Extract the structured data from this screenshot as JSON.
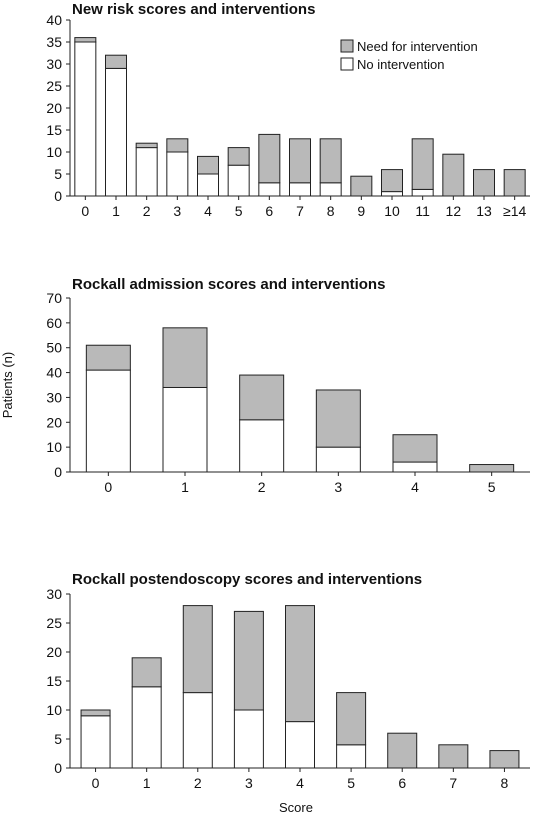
{
  "ylabel": "Patients (n)",
  "xlabel": "Score",
  "legend": {
    "need": "Need for intervention",
    "none": "No intervention"
  },
  "colors": {
    "need": "#b9b9b9",
    "none": "#ffffff",
    "outline": "#222222"
  },
  "chart_data": [
    {
      "type": "bar",
      "stacked": true,
      "title": "New risk scores and interventions",
      "categories": [
        "0",
        "1",
        "2",
        "3",
        "4",
        "5",
        "6",
        "7",
        "8",
        "9",
        "10",
        "11",
        "12",
        "13",
        "≥14"
      ],
      "series": [
        {
          "name": "No intervention",
          "values": [
            35,
            29,
            11,
            10,
            5,
            7,
            3,
            3,
            3,
            0,
            1,
            1.5,
            0,
            0,
            0
          ]
        },
        {
          "name": "Need for intervention",
          "values": [
            1,
            3,
            1,
            3,
            4,
            4,
            11,
            10,
            10,
            4.5,
            5,
            11.5,
            9.5,
            6,
            6
          ]
        }
      ],
      "ylim": [
        0,
        40
      ],
      "yticks": [
        0,
        5,
        10,
        15,
        20,
        25,
        30,
        35,
        40
      ],
      "legend_position": "top-right"
    },
    {
      "type": "bar",
      "stacked": true,
      "title": "Rockall admission scores and interventions",
      "categories": [
        "0",
        "1",
        "2",
        "3",
        "4",
        "5"
      ],
      "series": [
        {
          "name": "No intervention",
          "values": [
            41,
            34,
            21,
            10,
            4,
            0
          ]
        },
        {
          "name": "Need for intervention",
          "values": [
            10,
            24,
            18,
            23,
            11,
            3
          ]
        }
      ],
      "ylim": [
        0,
        70
      ],
      "yticks": [
        0,
        10,
        20,
        30,
        40,
        50,
        60,
        70
      ]
    },
    {
      "type": "bar",
      "stacked": true,
      "title": "Rockall postendoscopy scores and interventions",
      "categories": [
        "0",
        "1",
        "2",
        "3",
        "4",
        "5",
        "6",
        "7",
        "8"
      ],
      "series": [
        {
          "name": "No intervention",
          "values": [
            9,
            14,
            13,
            10,
            8,
            4,
            0,
            0,
            0
          ]
        },
        {
          "name": "Need for intervention",
          "values": [
            1,
            5,
            15,
            17,
            20,
            9,
            6,
            4,
            3
          ]
        }
      ],
      "ylim": [
        0,
        30
      ],
      "yticks": [
        0,
        5,
        10,
        15,
        20,
        25,
        30
      ]
    }
  ]
}
